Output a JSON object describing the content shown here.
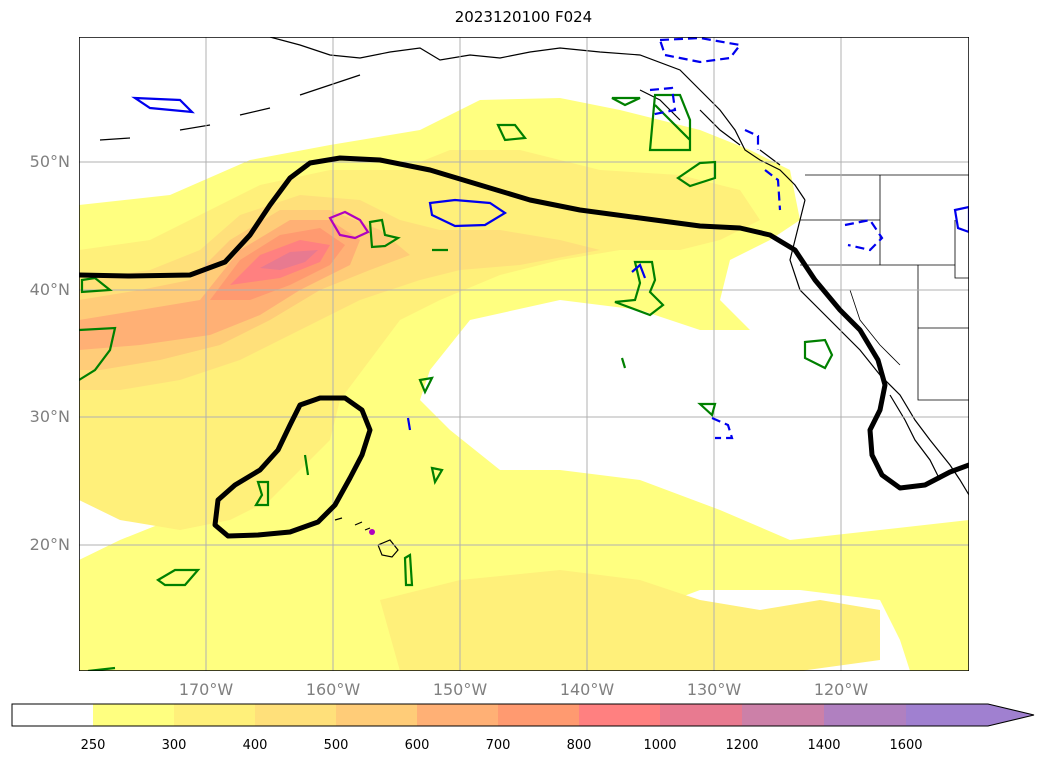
{
  "title": "2023120100 F024",
  "map": {
    "lat_labels": [
      "50°N",
      "40°N",
      "30°N",
      "20°N"
    ],
    "lon_labels": [
      "170°W",
      "160°W",
      "150°W",
      "140°W",
      "130°W",
      "120°W"
    ]
  },
  "colorbar": {
    "ticks": [
      "250",
      "300",
      "400",
      "500",
      "600",
      "700",
      "800",
      "1000",
      "1200",
      "1400",
      "1600"
    ],
    "colors": [
      "#ffffff",
      "#ffff80",
      "#fff07a",
      "#ffe07a",
      "#ffcc78",
      "#ffb075",
      "#ff9a70",
      "#ff8080",
      "#e87a90",
      "#cc80a8",
      "#b080c0",
      "#a080d0"
    ],
    "extend": "max"
  },
  "contour_colors": {
    "black_line": "#000000",
    "green": "#008000",
    "blue": "#0000ee",
    "magenta": "#b000c0"
  }
}
